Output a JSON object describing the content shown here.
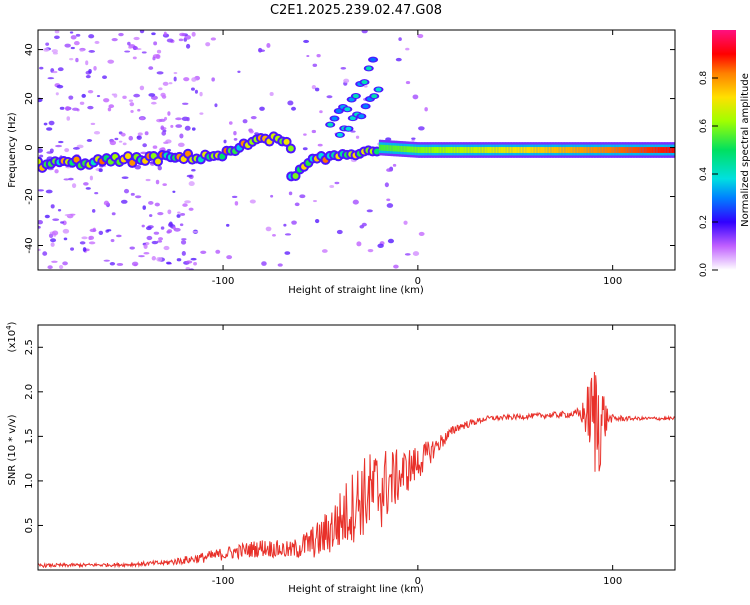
{
  "title": "C2E1.2025.239.02.47.G08",
  "chart_data": [
    {
      "type": "heatmap",
      "xlabel": "Height of straight line (km)",
      "ylabel": "Frequency (Hz)",
      "xlim": [
        -195,
        132
      ],
      "ylim": [
        -50,
        48
      ],
      "xticks": [
        -100,
        0,
        100
      ],
      "yticks": [
        -40,
        -20,
        0,
        20,
        40
      ],
      "colorbar": {
        "label": "Normalized spectral amplitude",
        "range": [
          0,
          1
        ],
        "ticks": [
          0.0,
          0.2,
          0.4,
          0.6,
          0.8
        ]
      },
      "ridges": [
        {
          "name": "main-ridge",
          "points": [
            [
              -195,
              -7
            ],
            [
              -150,
              -5
            ],
            [
              -120,
              -4
            ],
            [
              -100,
              -3
            ],
            [
              -90,
              0
            ],
            [
              -80,
              5
            ],
            [
              -70,
              2
            ],
            [
              -65,
              1
            ]
          ]
        },
        {
          "name": "lower-ridge",
          "points": [
            [
              -65,
              -13
            ],
            [
              -55,
              -6
            ],
            [
              -40,
              -3
            ],
            [
              -30,
              -2
            ],
            [
              -20,
              0
            ]
          ]
        },
        {
          "name": "upper-branch-1",
          "points": [
            [
              -45,
              10
            ],
            [
              -35,
              18
            ],
            [
              -28,
              27
            ],
            [
              -22,
              36
            ]
          ]
        },
        {
          "name": "upper-branch-2",
          "points": [
            [
              -40,
              6
            ],
            [
              -30,
              13
            ],
            [
              -24,
              20
            ],
            [
              -20,
              23
            ]
          ]
        },
        {
          "name": "flat-ridge",
          "points": [
            [
              -20,
              0
            ],
            [
              0,
              -1
            ],
            [
              40,
              -1
            ],
            [
              80,
              -1
            ],
            [
              132,
              -1
            ]
          ]
        }
      ]
    },
    {
      "type": "line",
      "xlabel": "Height of straight line (km)",
      "ylabel": "SNR (10 * v/v)",
      "yscale_label": "(x10",
      "yscale_exp": "4",
      "xlim": [
        -195,
        132
      ],
      "ylim": [
        0,
        2.75
      ],
      "xticks": [
        -100,
        0,
        100
      ],
      "yticks": [
        0.5,
        1.0,
        1.5,
        2.0,
        2.5
      ],
      "series": [
        {
          "name": "SNR",
          "color": "#e8312a",
          "envelope": [
            [
              -195,
              0.05,
              0.02
            ],
            [
              -150,
              0.06,
              0.02
            ],
            [
              -130,
              0.08,
              0.03
            ],
            [
              -110,
              0.14,
              0.06
            ],
            [
              -95,
              0.2,
              0.08
            ],
            [
              -80,
              0.25,
              0.1
            ],
            [
              -65,
              0.22,
              0.1
            ],
            [
              -50,
              0.35,
              0.22
            ],
            [
              -40,
              0.55,
              0.35
            ],
            [
              -30,
              0.8,
              0.45
            ],
            [
              -20,
              0.9,
              0.5
            ],
            [
              -10,
              1.05,
              0.3
            ],
            [
              0,
              1.2,
              0.2
            ],
            [
              10,
              1.4,
              0.1
            ],
            [
              20,
              1.6,
              0.05
            ],
            [
              35,
              1.7,
              0.03
            ],
            [
              60,
              1.73,
              0.03
            ],
            [
              80,
              1.75,
              0.04
            ],
            [
              84,
              1.75,
              0.1
            ],
            [
              88,
              1.75,
              0.4
            ],
            [
              92,
              1.7,
              0.8
            ],
            [
              95,
              1.7,
              0.4
            ],
            [
              98,
              1.7,
              0.05
            ],
            [
              110,
              1.7,
              0.02
            ],
            [
              132,
              1.7,
              0.02
            ]
          ]
        }
      ]
    }
  ]
}
